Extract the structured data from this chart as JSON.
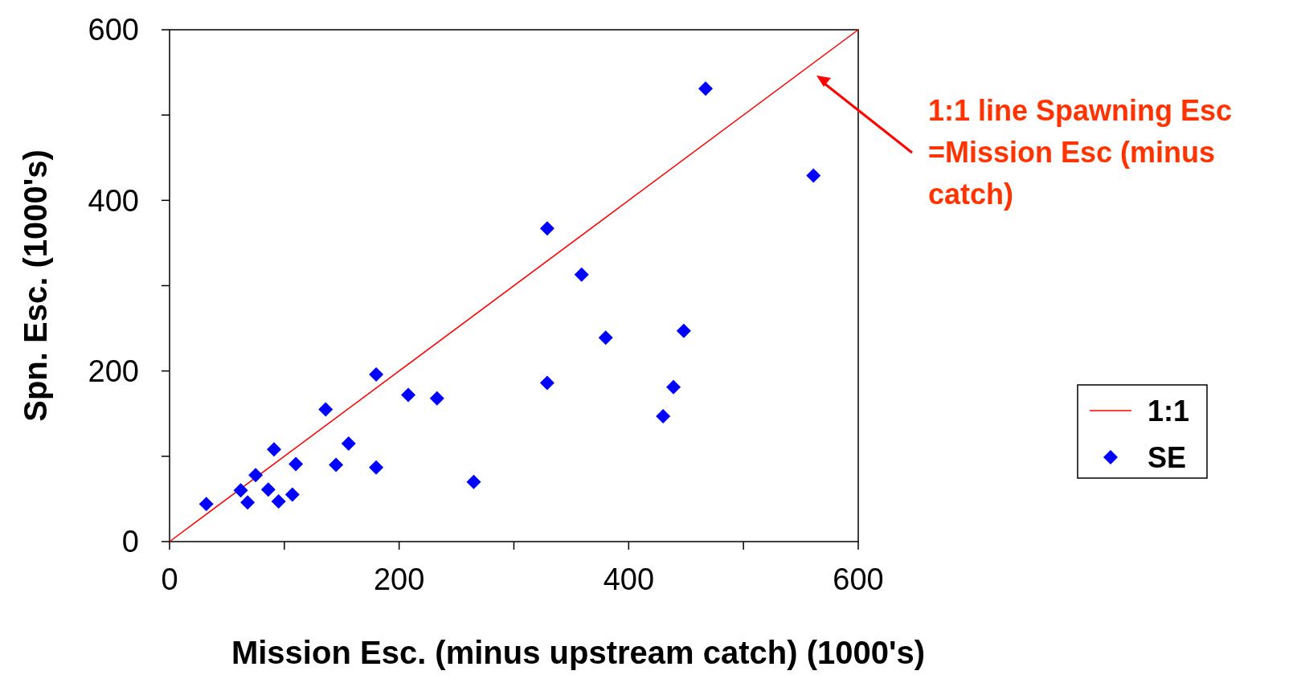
{
  "chart_data": {
    "type": "scatter",
    "xlabel": "Mission Esc. (minus upstream catch) (1000's)",
    "ylabel": "Spn. Esc. (1000's)",
    "xlim": [
      0,
      600
    ],
    "ylim": [
      0,
      600
    ],
    "xticks": [
      0,
      {
        "value": 100,
        "label": null
      },
      200,
      {
        "value": 300,
        "label": null
      },
      400,
      {
        "value": 500,
        "label": null
      },
      600
    ],
    "yticks": [
      0,
      {
        "value": 100,
        "label": null
      },
      200,
      {
        "value": 300,
        "label": null
      },
      400,
      {
        "value": 500,
        "label": null
      },
      600
    ],
    "legend": "right",
    "grid": false,
    "series": [
      {
        "name": "1:1",
        "type": "line",
        "color": "#ff0000",
        "marker": "none",
        "x": [
          0,
          600
        ],
        "values": [
          0,
          600
        ]
      },
      {
        "name": "SE",
        "color": "#0000ff",
        "marker": "diamond",
        "x": [
          32,
          62,
          68,
          75,
          86,
          91,
          95,
          107,
          110,
          136,
          145,
          156,
          180,
          180,
          208,
          233,
          265,
          329,
          329,
          359,
          380,
          430,
          439,
          448,
          467,
          561
        ],
        "values": [
          44,
          60,
          46,
          78,
          61,
          108,
          47,
          55,
          91,
          155,
          90,
          115,
          196,
          87,
          172,
          168,
          70,
          367,
          186,
          313,
          239,
          147,
          181,
          247,
          531,
          429
        ]
      }
    ],
    "annotations": [
      "1:1 line Spawning Esc =Mission Esc (minus catch)"
    ]
  }
}
